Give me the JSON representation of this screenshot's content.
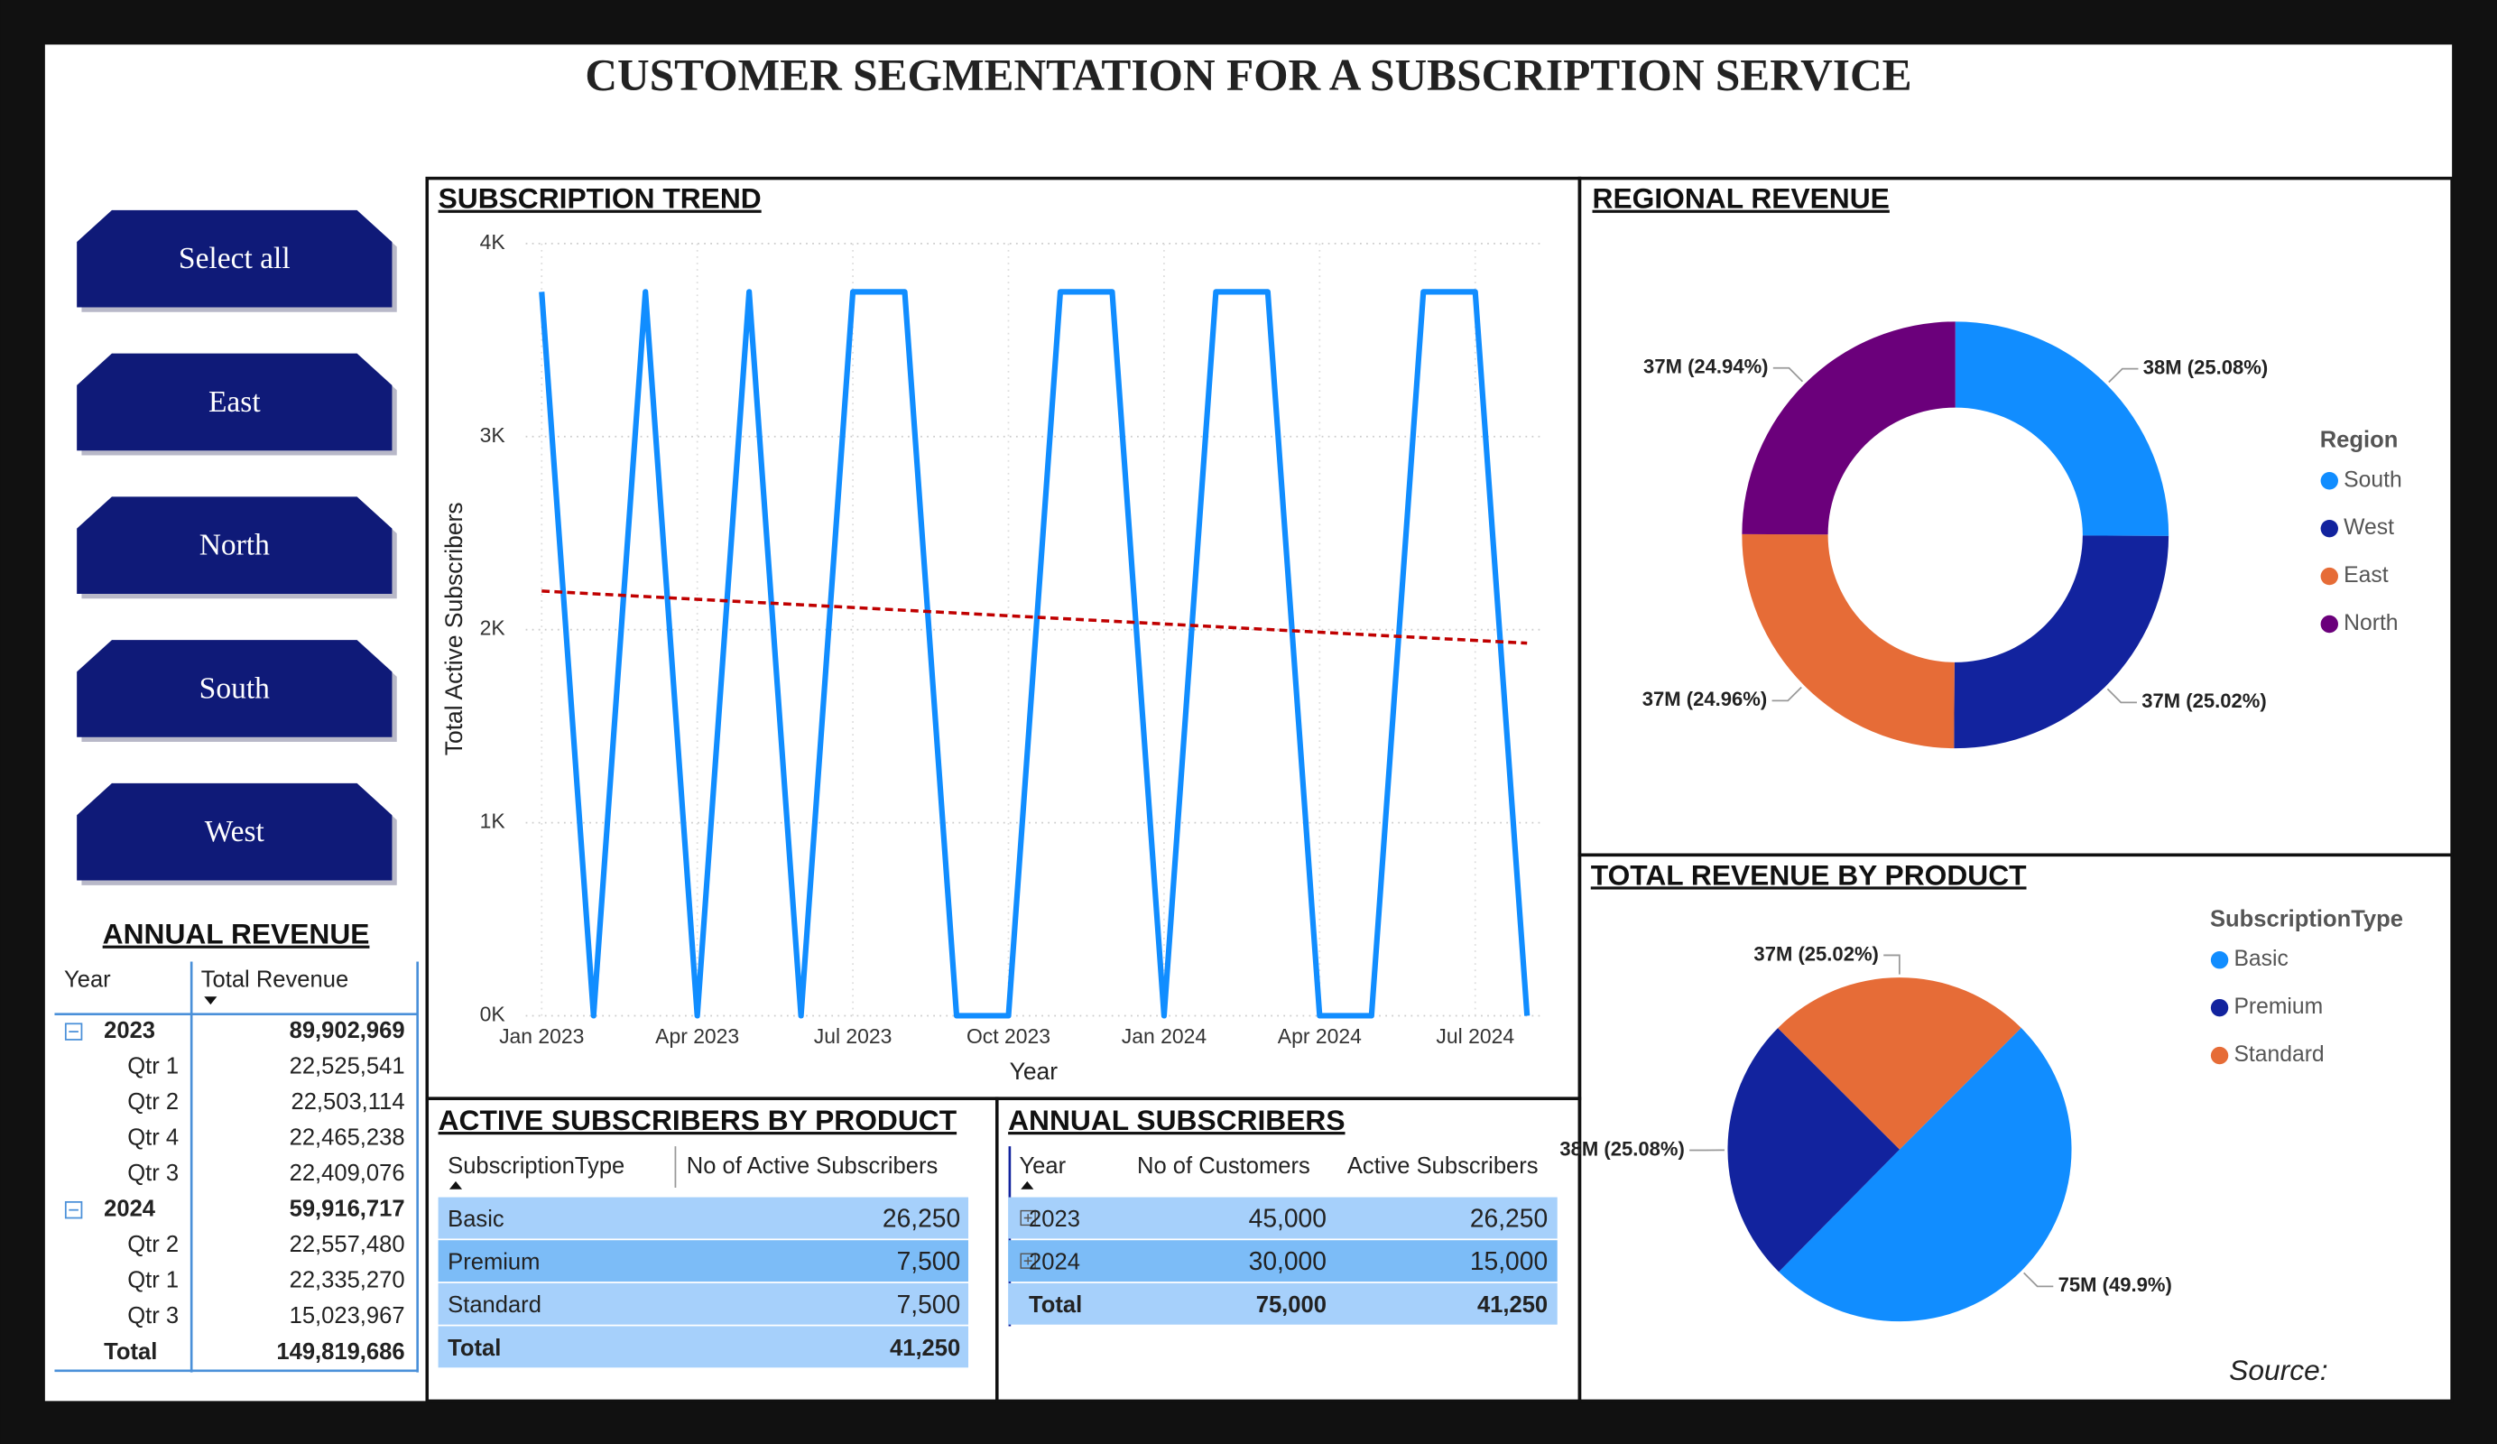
{
  "title": "CUSTOMER SEGMENTATION FOR A SUBSCRIPTION SERVICE",
  "slicer": [
    "Select all",
    "East",
    "North",
    "South",
    "West"
  ],
  "annual_revenue": {
    "title": "ANNUAL REVENUE",
    "columns": [
      "Year",
      "Total Revenue"
    ],
    "years": [
      {
        "year": "2023",
        "total": "89,902,969",
        "quarters": [
          [
            "Qtr 1",
            "22,525,541"
          ],
          [
            "Qtr 2",
            "22,503,114"
          ],
          [
            "Qtr 4",
            "22,465,238"
          ],
          [
            "Qtr 3",
            "22,409,076"
          ]
        ]
      },
      {
        "year": "2024",
        "total": "59,916,717",
        "quarters": [
          [
            "Qtr 2",
            "22,557,480"
          ],
          [
            "Qtr 1",
            "22,335,270"
          ],
          [
            "Qtr 3",
            "15,023,967"
          ]
        ]
      }
    ],
    "total": [
      "Total",
      "149,819,686"
    ]
  },
  "chart_data": [
    {
      "type": "line",
      "title": "SUBSCRIPTION TREND",
      "x_label": "Year",
      "y_label": "Total Active Subscribers",
      "x": [
        "Jan 2023",
        "Feb 2023",
        "Mar 2023",
        "Apr 2023",
        "May 2023",
        "Jun 2023",
        "Jul 2023",
        "Aug 2023",
        "Sep 2023",
        "Oct 2023",
        "Nov 2023",
        "Dec 2023",
        "Jan 2024",
        "Feb 2024",
        "Mar 2024",
        "Apr 2024",
        "May 2024",
        "Jun 2024",
        "Jul 2024",
        "Aug 2024"
      ],
      "xticks": [
        "Jan 2023",
        "Apr 2023",
        "Jul 2023",
        "Oct 2023",
        "Jan 2024",
        "Apr 2024",
        "Jul 2024"
      ],
      "series": [
        {
          "color": "#118dff",
          "values": [
            3750,
            0,
            3750,
            0,
            3750,
            0,
            3750,
            3750,
            0,
            0,
            3750,
            3750,
            0,
            3750,
            3750,
            0,
            0,
            3750,
            3750,
            0
          ]
        }
      ],
      "trend_line": {
        "color": "#c00000",
        "values": [
          2200,
          1930
        ]
      },
      "ylim": [
        0,
        4000
      ],
      "yticks": [
        {
          "value": 0,
          "label": "0K"
        },
        {
          "value": 1000,
          "label": "1K"
        },
        {
          "value": 2000,
          "label": "2K"
        },
        {
          "value": 3000,
          "label": "3K"
        },
        {
          "value": 4000,
          "label": "4K"
        }
      ],
      "grid": true
    },
    {
      "type": "donut",
      "title": "REGIONAL REVENUE",
      "legend_title": "Region",
      "categories": [
        "South",
        "West",
        "East",
        "North"
      ],
      "values": [
        25.08,
        25.02,
        24.96,
        24.94
      ],
      "value_labels": [
        "38M (25.08%)",
        "37M (25.02%)",
        "37M (24.96%)",
        "37M (24.94%)"
      ],
      "colors": [
        "#118dff",
        "#12239e",
        "#e66c37",
        "#6b007b"
      ]
    },
    {
      "type": "pie",
      "title": "TOTAL REVENUE BY PRODUCT",
      "legend_title": "SubscriptionType",
      "categories": [
        "Basic",
        "Premium",
        "Standard"
      ],
      "values": [
        49.9,
        25.08,
        25.02
      ],
      "value_labels": [
        "75M (49.9%)",
        "38M (25.08%)",
        "37M (25.02%)"
      ],
      "colors": [
        "#118dff",
        "#12239e",
        "#e66c37"
      ]
    }
  ],
  "active_by_product": {
    "title": "ACTIVE SUBSCRIBERS BY PRODUCT",
    "columns": [
      "SubscriptionType",
      "No of Active Subscribers"
    ],
    "rows": [
      [
        "Basic",
        "26,250"
      ],
      [
        "Premium",
        "7,500"
      ],
      [
        "Standard",
        "7,500"
      ]
    ],
    "total": [
      "Total",
      "41,250"
    ]
  },
  "annual_subscribers": {
    "title": "ANNUAL SUBSCRIBERS",
    "columns": [
      "Year",
      "No of Customers",
      "Active Subscribers"
    ],
    "rows": [
      [
        "2023",
        "45,000",
        "26,250"
      ],
      [
        "2024",
        "30,000",
        "15,000"
      ]
    ],
    "total": [
      "Total",
      "75,000",
      "41,250"
    ]
  },
  "source": "Source:"
}
